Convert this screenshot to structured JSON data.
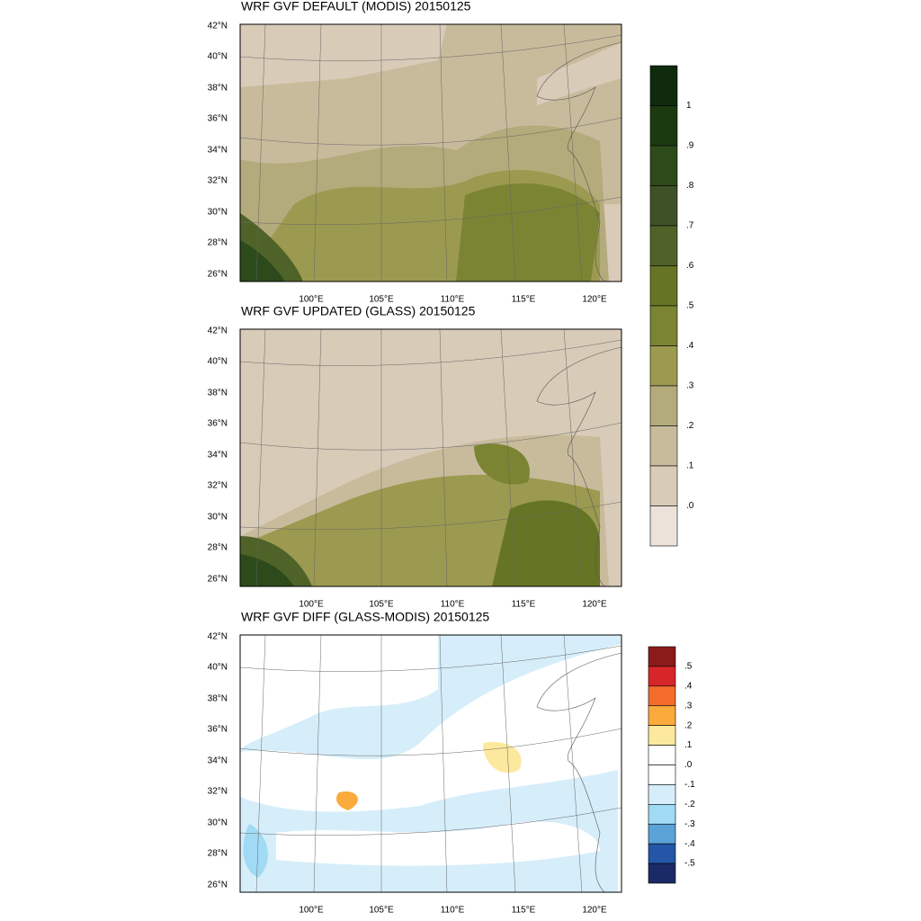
{
  "panels": [
    {
      "title": "WRF GVF DEFAULT (MODIS)  20150125"
    },
    {
      "title": "WRF GVF UPDATED (GLASS)  20150125"
    },
    {
      "title": "WRF GVF DIFF (GLASS-MODIS)  20150125"
    }
  ],
  "lat_labels": [
    "42°N",
    "40°N",
    "38°N",
    "36°N",
    "34°N",
    "32°N",
    "30°N",
    "28°N",
    "26°N"
  ],
  "lon_labels": [
    "100°E",
    "105°E",
    "110°E",
    "115°E",
    "120°E"
  ],
  "colorbars": [
    {
      "colors": [
        "#0f2a0c",
        "#1c3a10",
        "#2d4a1a",
        "#3f5227",
        "#4f6329",
        "#667525",
        "#7b8433",
        "#9c9a50",
        "#b3ab7b",
        "#c8bb9c",
        "#d8cbb8",
        "#ece2da"
      ],
      "labels": [
        "1",
        ".9",
        ".8",
        ".7",
        ".6",
        ".5",
        ".4",
        ".3",
        ".2",
        ".1",
        ".0"
      ]
    },
    {
      "colors": [
        "#8b1a1a",
        "#d7262a",
        "#f36c2c",
        "#fbab3c",
        "#fde99d",
        "#ffffff",
        "#ffffff",
        "#d6eefa",
        "#a0daf5",
        "#5ba3d6",
        "#2356a6",
        "#1a2a66"
      ],
      "labels": [
        ".5",
        ".4",
        ".3",
        ".2",
        ".1",
        ".0",
        "-.1",
        "-.2",
        "-.3",
        "-.4",
        "-.5"
      ]
    }
  ]
}
